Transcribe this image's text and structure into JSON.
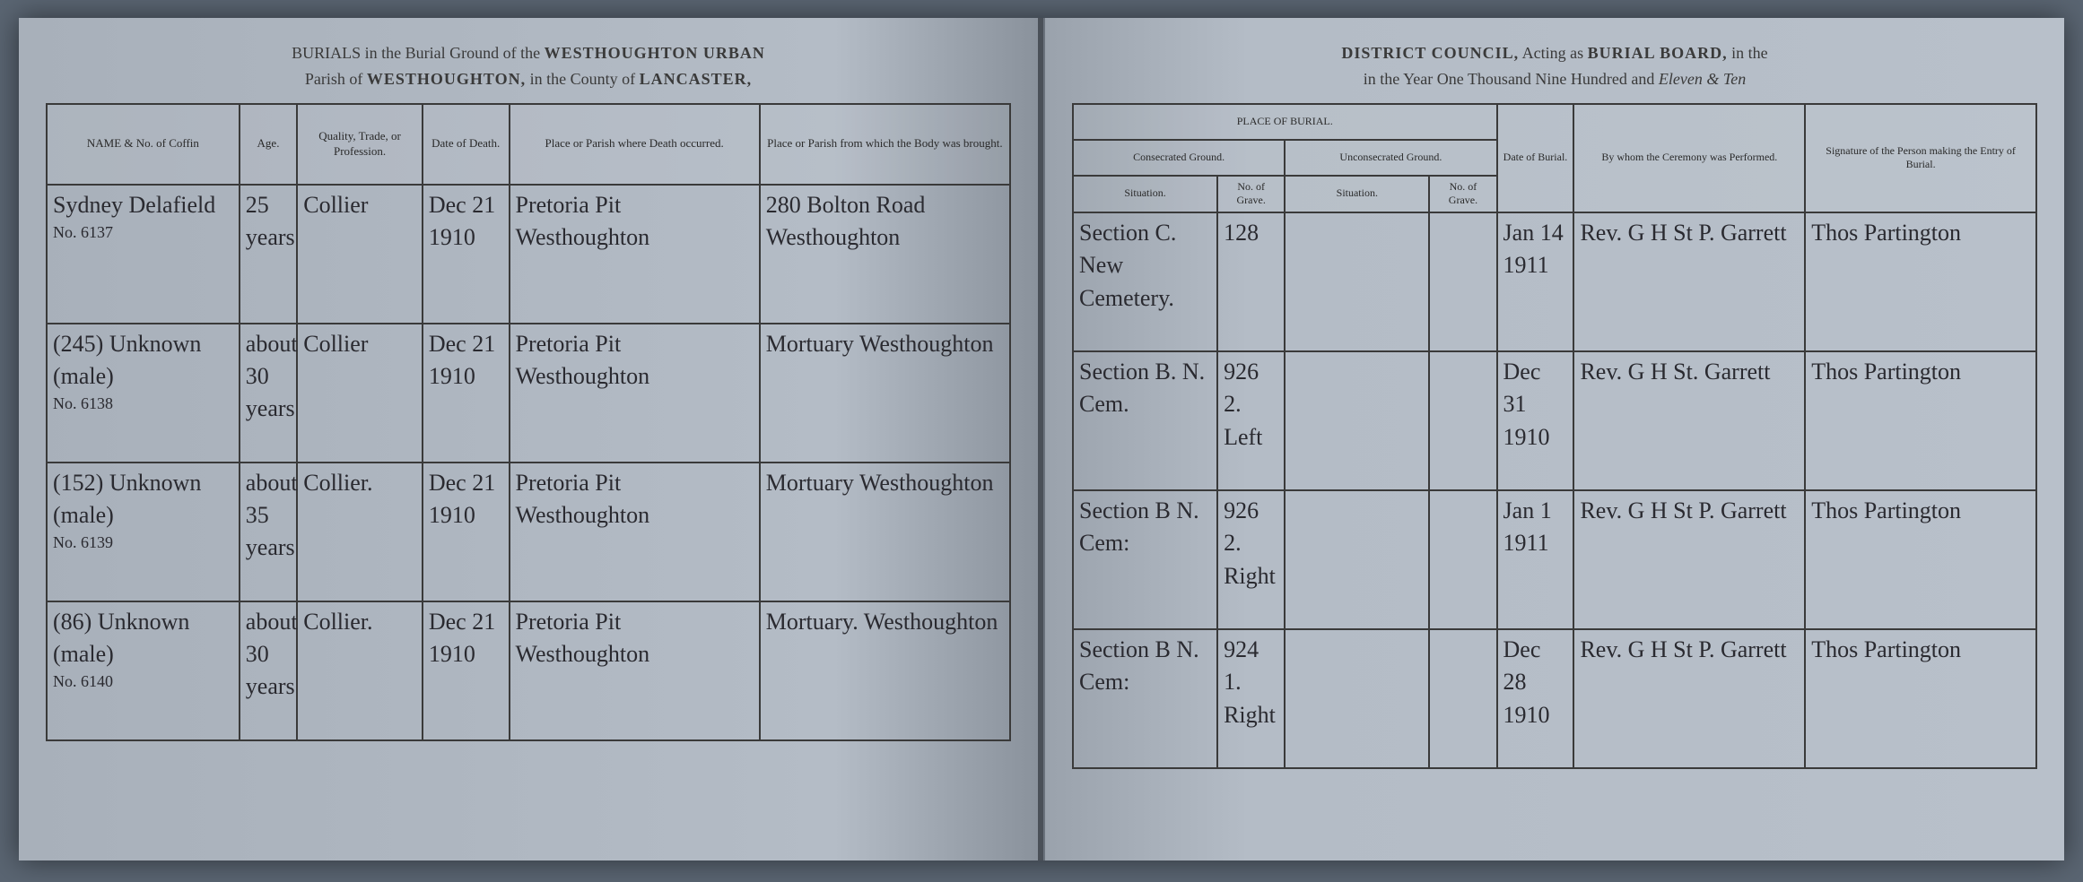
{
  "header_left": {
    "line1_prefix": "BURIALS in the Burial Ground of the",
    "line1_bold": "WESTHOUGHTON URBAN",
    "line2_prefix": "Parish of",
    "line2_bold1": "WESTHOUGHTON,",
    "line2_mid": "in the County of",
    "line2_bold2": "LANCASTER,"
  },
  "header_right": {
    "line1_bold1": "DISTRICT COUNCIL,",
    "line1_mid": "Acting as",
    "line1_bold2": "BURIAL BOARD,",
    "line1_suffix": "in the",
    "line2_prefix": "in the Year One Thousand Nine Hundred and",
    "line2_script": "Eleven & Ten"
  },
  "columns_left": {
    "name": "NAME\n& No. of Coffin",
    "age": "Age.",
    "trade": "Quality, Trade, or Profession.",
    "date_death": "Date of Death.",
    "place_death": "Place or Parish where Death occurred.",
    "place_body": "Place or Parish from which the Body was brought."
  },
  "columns_right": {
    "place_burial": "PLACE OF BURIAL.",
    "consecrated": "Consecrated Ground.",
    "unconsecrated": "Unconsecrated Ground.",
    "situation": "Situation.",
    "grave_no": "No. of Grave.",
    "date_burial": "Date of Burial.",
    "by_whom": "By whom the Ceremony was Performed.",
    "signature": "Signature of the Person making the Entry of Burial."
  },
  "rows": [
    {
      "name": "Sydney Delafield",
      "coffin": "No. 6137",
      "age": "25 years",
      "trade": "Collier",
      "date_death": "Dec 21 1910",
      "place_death": "Pretoria Pit Westhoughton",
      "place_body": "280 Bolton Road Westhoughton",
      "situation_c": "Section C. New Cemetery.",
      "grave_c": "128",
      "situation_u": "",
      "grave_u": "",
      "date_burial": "Jan 14 1911",
      "by_whom": "Rev. G H St P. Garrett",
      "signature": "Thos Partington"
    },
    {
      "name": "(245) Unknown (male)",
      "coffin": "No. 6138",
      "age": "about 30 years",
      "trade": "Collier",
      "date_death": "Dec 21 1910",
      "place_death": "Pretoria Pit Westhoughton",
      "place_body": "Mortuary Westhoughton",
      "situation_c": "Section B. N. Cem.",
      "grave_c": "926 2. Left",
      "situation_u": "",
      "grave_u": "",
      "date_burial": "Dec 31 1910",
      "by_whom": "Rev. G H St. Garrett",
      "signature": "Thos Partington"
    },
    {
      "name": "(152) Unknown (male)",
      "coffin": "No. 6139",
      "age": "about 35 years",
      "trade": "Collier.",
      "date_death": "Dec 21 1910",
      "place_death": "Pretoria Pit Westhoughton",
      "place_body": "Mortuary Westhoughton",
      "situation_c": "Section B N. Cem:",
      "grave_c": "926 2. Right",
      "situation_u": "",
      "grave_u": "",
      "date_burial": "Jan 1 1911",
      "by_whom": "Rev. G H St P. Garrett",
      "signature": "Thos Partington"
    },
    {
      "name": "(86) Unknown (male)",
      "coffin": "No. 6140",
      "age": "about 30 years",
      "trade": "Collier.",
      "date_death": "Dec 21 1910",
      "place_death": "Pretoria Pit Westhoughton",
      "place_body": "Mortuary. Westhoughton",
      "situation_c": "Section B N. Cem:",
      "grave_c": "924 1. Right",
      "situation_u": "",
      "grave_u": "",
      "date_burial": "Dec 28 1910",
      "by_whom": "Rev. G H St P. Garrett",
      "signature": "Thos Partington"
    }
  ]
}
